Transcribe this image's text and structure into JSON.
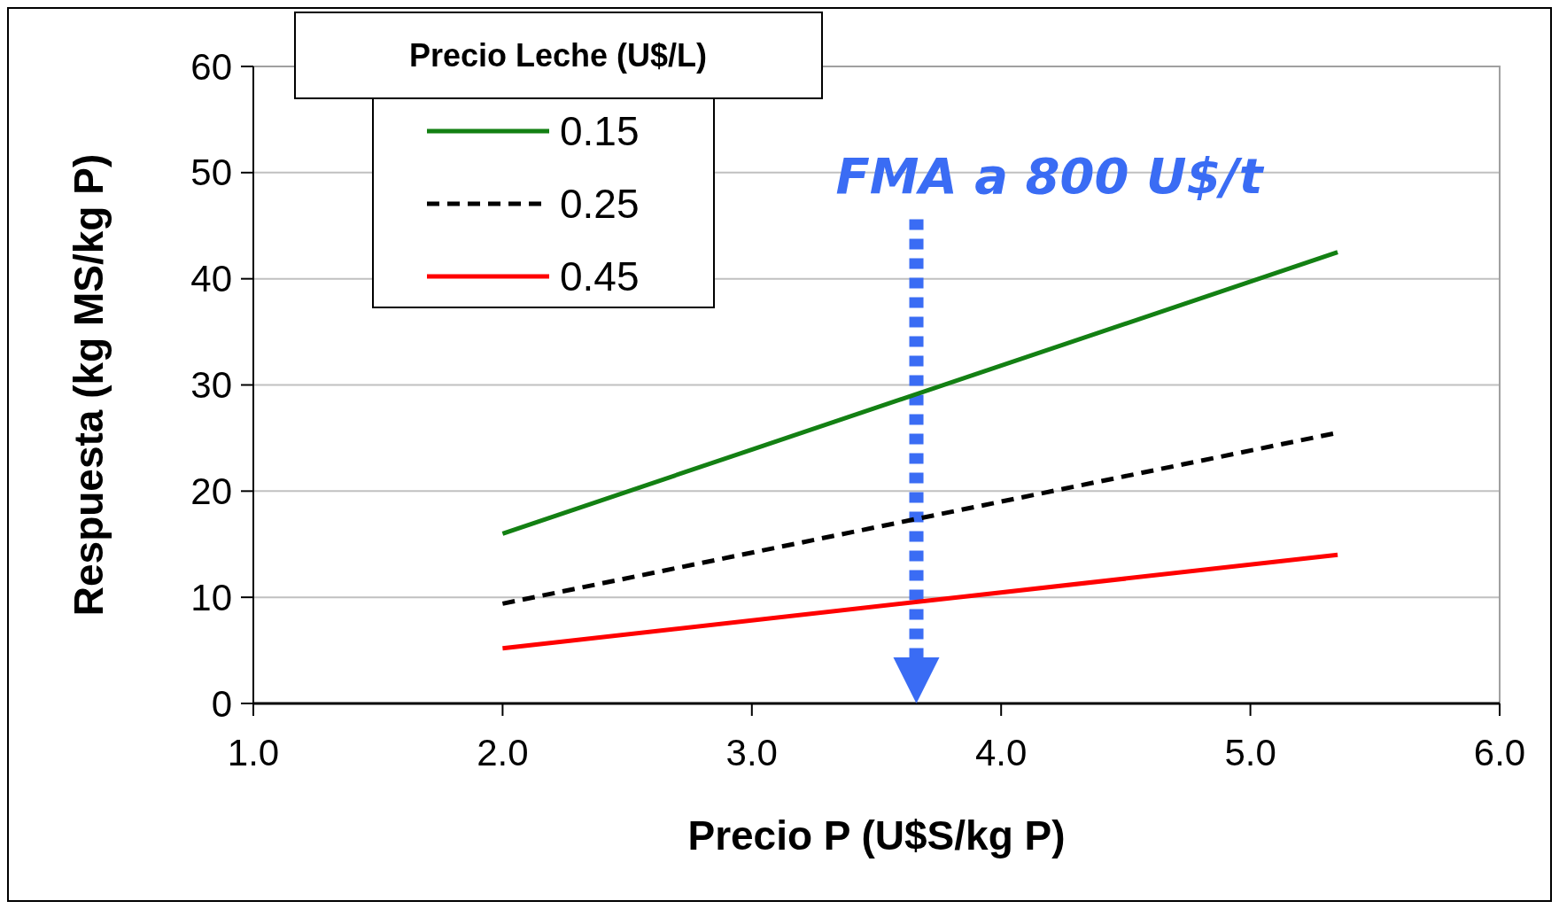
{
  "chart_data": {
    "type": "line",
    "xlabel": "Precio P (U$S/kg P)",
    "ylabel": "Respuesta  (kg MS/kg P)",
    "legend_title": "Precio Leche  (U$/L)",
    "xlim": [
      1,
      6
    ],
    "xticks": [
      {
        "value": 1,
        "label": "1.0"
      },
      {
        "value": 2,
        "label": "2.0"
      },
      {
        "value": 3,
        "label": "3.0"
      },
      {
        "value": 4,
        "label": "4.0"
      },
      {
        "value": 5,
        "label": "5.0"
      },
      {
        "value": 6,
        "label": "6.0"
      }
    ],
    "x": [
      2.0,
      5.35
    ],
    "ylim": [
      0,
      60
    ],
    "yticks": [
      0,
      10,
      20,
      30,
      40,
      50,
      60
    ],
    "grid": "y",
    "legend": "top left",
    "marker": "none",
    "series": [
      {
        "name": "0.15",
        "color": "#138013",
        "line_style": "solid",
        "values": [
          16,
          42.5
        ]
      },
      {
        "name": "0.25",
        "color": "#000000",
        "line_style": "dashed",
        "values": [
          9.4,
          25.5
        ]
      },
      {
        "name": "0.45",
        "color": "#ff0000",
        "line_style": "solid",
        "values": [
          5.2,
          14.0
        ]
      }
    ],
    "ref_lines": [
      {
        "axis": "x",
        "value": 3.66,
        "label": "FMA a 800 U$/t",
        "color": "#3a6cf4",
        "line_style": "dotted"
      }
    ]
  }
}
